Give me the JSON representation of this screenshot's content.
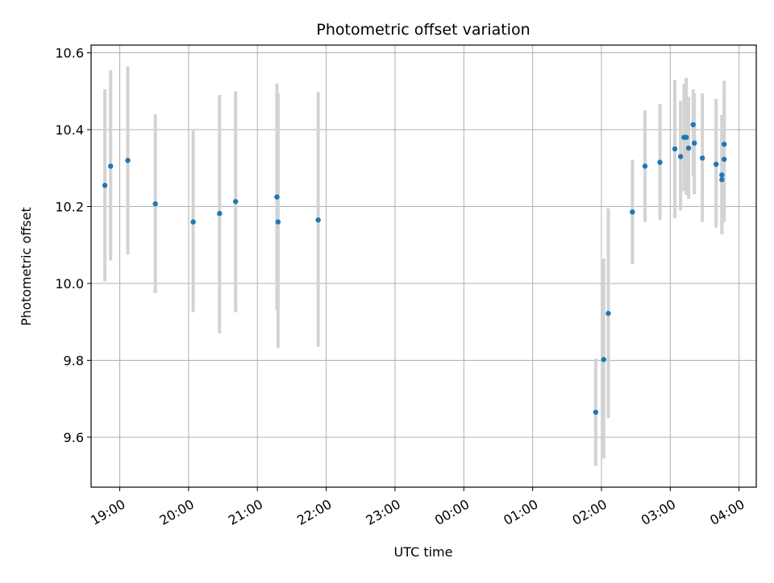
{
  "chart_data": {
    "type": "scatter",
    "title": "Photometric offset variation",
    "xlabel": "UTC time",
    "ylabel": "Photometric offset",
    "grid": true,
    "x_ticks": [
      "19:00",
      "20:00",
      "21:00",
      "22:00",
      "23:00",
      "00:00",
      "01:00",
      "02:00",
      "03:00",
      "04:00"
    ],
    "y_ticks": [
      "9.6",
      "9.8",
      "10.0",
      "10.2",
      "10.4",
      "10.6"
    ],
    "xlim": [
      "18:35",
      "04:15"
    ],
    "ylim": [
      9.47,
      10.62
    ],
    "marker_color": "#1f77b4",
    "errorbar_color": "#d3d3d3",
    "points": [
      {
        "x": "18:47",
        "y": 10.255,
        "ylow": 10.005,
        "yhigh": 10.505
      },
      {
        "x": "18:52",
        "y": 10.305,
        "ylow": 10.06,
        "yhigh": 10.555
      },
      {
        "x": "19:07",
        "y": 10.32,
        "ylow": 10.075,
        "yhigh": 10.565
      },
      {
        "x": "19:31",
        "y": 10.207,
        "ylow": 9.975,
        "yhigh": 10.44
      },
      {
        "x": "20:04",
        "y": 10.16,
        "ylow": 9.925,
        "yhigh": 10.4
      },
      {
        "x": "20:27",
        "y": 10.182,
        "ylow": 9.87,
        "yhigh": 10.49
      },
      {
        "x": "20:41",
        "y": 10.213,
        "ylow": 9.925,
        "yhigh": 10.5
      },
      {
        "x": "21:17",
        "y": 10.225,
        "ylow": 9.93,
        "yhigh": 10.52
      },
      {
        "x": "21:18",
        "y": 10.16,
        "ylow": 9.832,
        "yhigh": 10.495
      },
      {
        "x": "21:53",
        "y": 10.165,
        "ylow": 9.835,
        "yhigh": 10.498
      },
      {
        "x": "01:55",
        "y": 9.665,
        "ylow": 9.525,
        "yhigh": 9.805
      },
      {
        "x": "02:02",
        "y": 9.802,
        "ylow": 9.545,
        "yhigh": 10.065
      },
      {
        "x": "02:06",
        "y": 9.922,
        "ylow": 9.65,
        "yhigh": 10.195
      },
      {
        "x": "02:27",
        "y": 10.186,
        "ylow": 10.05,
        "yhigh": 10.322
      },
      {
        "x": "02:38",
        "y": 10.305,
        "ylow": 10.16,
        "yhigh": 10.45
      },
      {
        "x": "02:51",
        "y": 10.315,
        "ylow": 10.165,
        "yhigh": 10.467
      },
      {
        "x": "03:04",
        "y": 10.35,
        "ylow": 10.17,
        "yhigh": 10.53
      },
      {
        "x": "03:09",
        "y": 10.33,
        "ylow": 10.19,
        "yhigh": 10.475
      },
      {
        "x": "03:12",
        "y": 10.38,
        "ylow": 10.24,
        "yhigh": 10.52
      },
      {
        "x": "03:14",
        "y": 10.38,
        "ylow": 10.23,
        "yhigh": 10.535
      },
      {
        "x": "03:16",
        "y": 10.352,
        "ylow": 10.22,
        "yhigh": 10.485
      },
      {
        "x": "03:20",
        "y": 10.413,
        "ylow": 10.28,
        "yhigh": 10.505
      },
      {
        "x": "03:21",
        "y": 10.365,
        "ylow": 10.232,
        "yhigh": 10.495
      },
      {
        "x": "03:28",
        "y": 10.326,
        "ylow": 10.16,
        "yhigh": 10.495
      },
      {
        "x": "03:40",
        "y": 10.31,
        "ylow": 10.145,
        "yhigh": 10.48
      },
      {
        "x": "03:45",
        "y": 10.27,
        "ylow": 10.15,
        "yhigh": 10.39
      },
      {
        "x": "03:45",
        "y": 10.282,
        "ylow": 10.128,
        "yhigh": 10.438
      },
      {
        "x": "03:47",
        "y": 10.362,
        "ylow": 10.197,
        "yhigh": 10.527
      },
      {
        "x": "03:47",
        "y": 10.323,
        "ylow": 10.16,
        "yhigh": 10.486
      }
    ]
  }
}
